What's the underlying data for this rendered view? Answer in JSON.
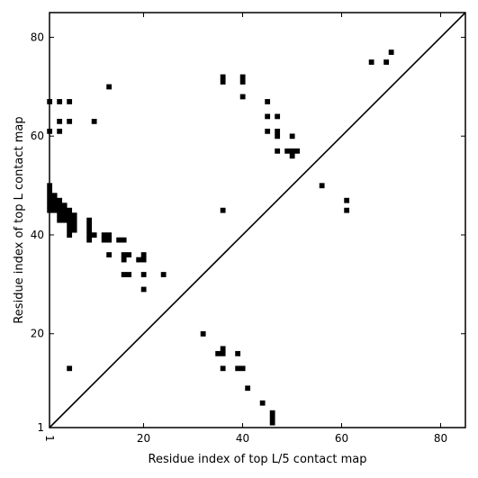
{
  "chart_data": {
    "type": "heatmap",
    "xlabel": "Residue index of top L/5 contact map",
    "ylabel": "Residue index of top L contact map",
    "xlim": [
      1,
      85
    ],
    "ylim": [
      1,
      85
    ],
    "xticks": [
      1,
      20,
      40,
      60,
      80
    ],
    "yticks": [
      1,
      20,
      40,
      60,
      80
    ],
    "tick_labels_x": [
      "1",
      "20",
      "40",
      "60",
      "80"
    ],
    "tick_labels_y": [
      "1",
      "20",
      "40",
      "60",
      "80"
    ],
    "diagonal": true,
    "grid": false,
    "cell_color": "#000000",
    "upper_contacts": [
      [
        1,
        67
      ],
      [
        3,
        67
      ],
      [
        5,
        67
      ],
      [
        13,
        70
      ],
      [
        3,
        63
      ],
      [
        5,
        63
      ],
      [
        10,
        63
      ],
      [
        1,
        61
      ],
      [
        3,
        61
      ],
      [
        1,
        50
      ],
      [
        1,
        49
      ],
      [
        1,
        48
      ],
      [
        2,
        48
      ],
      [
        1,
        47
      ],
      [
        2,
        47
      ],
      [
        3,
        47
      ],
      [
        1,
        46
      ],
      [
        2,
        46
      ],
      [
        3,
        46
      ],
      [
        4,
        46
      ],
      [
        1,
        45
      ],
      [
        2,
        45
      ],
      [
        3,
        45
      ],
      [
        4,
        45
      ],
      [
        5,
        45
      ],
      [
        3,
        44
      ],
      [
        4,
        44
      ],
      [
        5,
        44
      ],
      [
        6,
        44
      ],
      [
        3,
        43
      ],
      [
        4,
        43
      ],
      [
        5,
        43
      ],
      [
        6,
        43
      ],
      [
        5,
        42
      ],
      [
        6,
        42
      ],
      [
        5,
        41
      ],
      [
        6,
        41
      ],
      [
        5,
        40
      ],
      [
        9,
        43
      ],
      [
        9,
        42
      ],
      [
        9,
        41
      ],
      [
        9,
        40
      ],
      [
        10,
        40
      ],
      [
        9,
        39
      ],
      [
        12,
        40
      ],
      [
        13,
        40
      ],
      [
        12,
        39
      ],
      [
        13,
        39
      ],
      [
        15,
        39
      ],
      [
        16,
        39
      ],
      [
        13,
        36
      ],
      [
        16,
        36
      ],
      [
        17,
        36
      ],
      [
        20,
        36
      ],
      [
        16,
        35
      ],
      [
        19,
        35
      ],
      [
        20,
        35
      ],
      [
        16,
        32
      ],
      [
        17,
        32
      ],
      [
        20,
        32
      ],
      [
        24,
        32
      ],
      [
        20,
        29
      ],
      [
        36,
        72
      ],
      [
        40,
        72
      ],
      [
        36,
        71
      ],
      [
        40,
        71
      ],
      [
        40,
        68
      ],
      [
        45,
        67
      ],
      [
        45,
        64
      ],
      [
        47,
        64
      ],
      [
        45,
        61
      ],
      [
        47,
        61
      ],
      [
        47,
        60
      ],
      [
        50,
        60
      ],
      [
        47,
        57
      ],
      [
        49,
        57
      ],
      [
        50,
        57
      ],
      [
        51,
        57
      ],
      [
        50,
        56
      ],
      [
        36,
        45
      ],
      [
        56,
        50
      ],
      [
        61,
        47
      ],
      [
        61,
        45
      ],
      [
        66,
        75
      ],
      [
        69,
        75
      ],
      [
        70,
        77
      ]
    ],
    "lower_contacts": [
      [
        5,
        13
      ],
      [
        32,
        20
      ],
      [
        35,
        16
      ],
      [
        36,
        16
      ],
      [
        36,
        17
      ],
      [
        39,
        16
      ],
      [
        36,
        13
      ],
      [
        39,
        13
      ],
      [
        40,
        13
      ],
      [
        41,
        9
      ],
      [
        44,
        6
      ],
      [
        46,
        4
      ],
      [
        46,
        3
      ],
      [
        46,
        2
      ]
    ]
  }
}
